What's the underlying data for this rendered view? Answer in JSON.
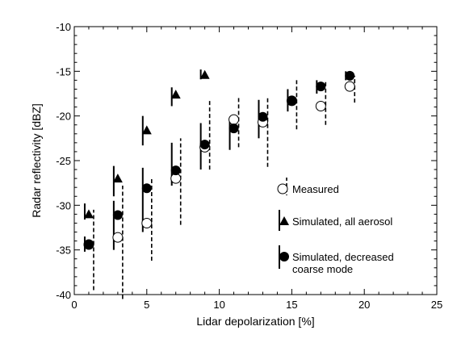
{
  "chart_data": {
    "type": "scatter",
    "xlabel": "Lidar depolarization [%]",
    "ylabel": "Radar reflectivity [dBZ]",
    "xlim": [
      0,
      25
    ],
    "ylim": [
      -40,
      -10
    ],
    "xticks": [
      "0",
      "5",
      "10",
      "15",
      "20",
      "25"
    ],
    "yticks": [
      "-10",
      "-15",
      "-20",
      "-25",
      "-30",
      "-35",
      "-40"
    ],
    "xtick_values": [
      0,
      5,
      10,
      15,
      20,
      25
    ],
    "ytick_values": [
      -10,
      -15,
      -20,
      -25,
      -30,
      -35,
      -40
    ],
    "grid": false,
    "legend_position": "right",
    "legend": {
      "measured": "Measured",
      "sim_all": "Simulated, all aerosol",
      "sim_dec_line1": "Simulated, decreased",
      "sim_dec_line2": "coarse mode"
    },
    "series": [
      {
        "name": "Measured",
        "marker": "open-circle",
        "errorbar": "dashed",
        "x": [
          1.0,
          3.0,
          5.0,
          7.0,
          9.0,
          11.0,
          13.0,
          15.0,
          17.0,
          19.0
        ],
        "y": [
          -34.4,
          -33.6,
          -32.0,
          -27.0,
          -23.5,
          -20.4,
          -20.7,
          -18.3,
          -18.9,
          -16.7
        ],
        "err_low": [
          -39.5,
          -40.5,
          -36.2,
          -32.2,
          -26.0,
          -23.5,
          -25.7,
          -21.5,
          -21.0,
          -18.5
        ],
        "err_high": [
          -30.5,
          -27.8,
          -27.0,
          -22.5,
          -18.3,
          -18.0,
          -17.8,
          -16.0,
          -16.2,
          -15.5
        ]
      },
      {
        "name": "Simulated, all aerosol",
        "marker": "filled-triangle",
        "errorbar": "solid",
        "x": [
          1.0,
          3.0,
          5.0,
          7.0,
          9.0
        ],
        "y": [
          -31.0,
          -27.0,
          -21.6,
          -17.6,
          -15.4
        ],
        "err_low": [
          -31.6,
          -29.0,
          -23.3,
          -18.9,
          -15.9
        ],
        "err_high": [
          -29.8,
          -25.6,
          -20.0,
          -16.8,
          -14.8
        ]
      },
      {
        "name": "Simulated, decreased coarse mode",
        "marker": "filled-circle",
        "errorbar": "solid",
        "x": [
          1.0,
          3.0,
          5.0,
          7.0,
          9.0,
          11.0,
          13.0,
          15.0,
          17.0,
          19.0
        ],
        "y": [
          -34.4,
          -31.1,
          -28.1,
          -26.1,
          -23.2,
          -21.4,
          -20.1,
          -18.3,
          -16.7,
          -15.5
        ],
        "err_low": [
          -35.2,
          -35.0,
          -33.0,
          -27.8,
          -26.0,
          -23.8,
          -22.5,
          -19.5,
          -17.5,
          -16.0
        ],
        "err_high": [
          -33.5,
          -29.5,
          -25.8,
          -23.0,
          -20.8,
          -20.2,
          -18.2,
          -17.0,
          -16.0,
          -15.0
        ]
      }
    ]
  }
}
